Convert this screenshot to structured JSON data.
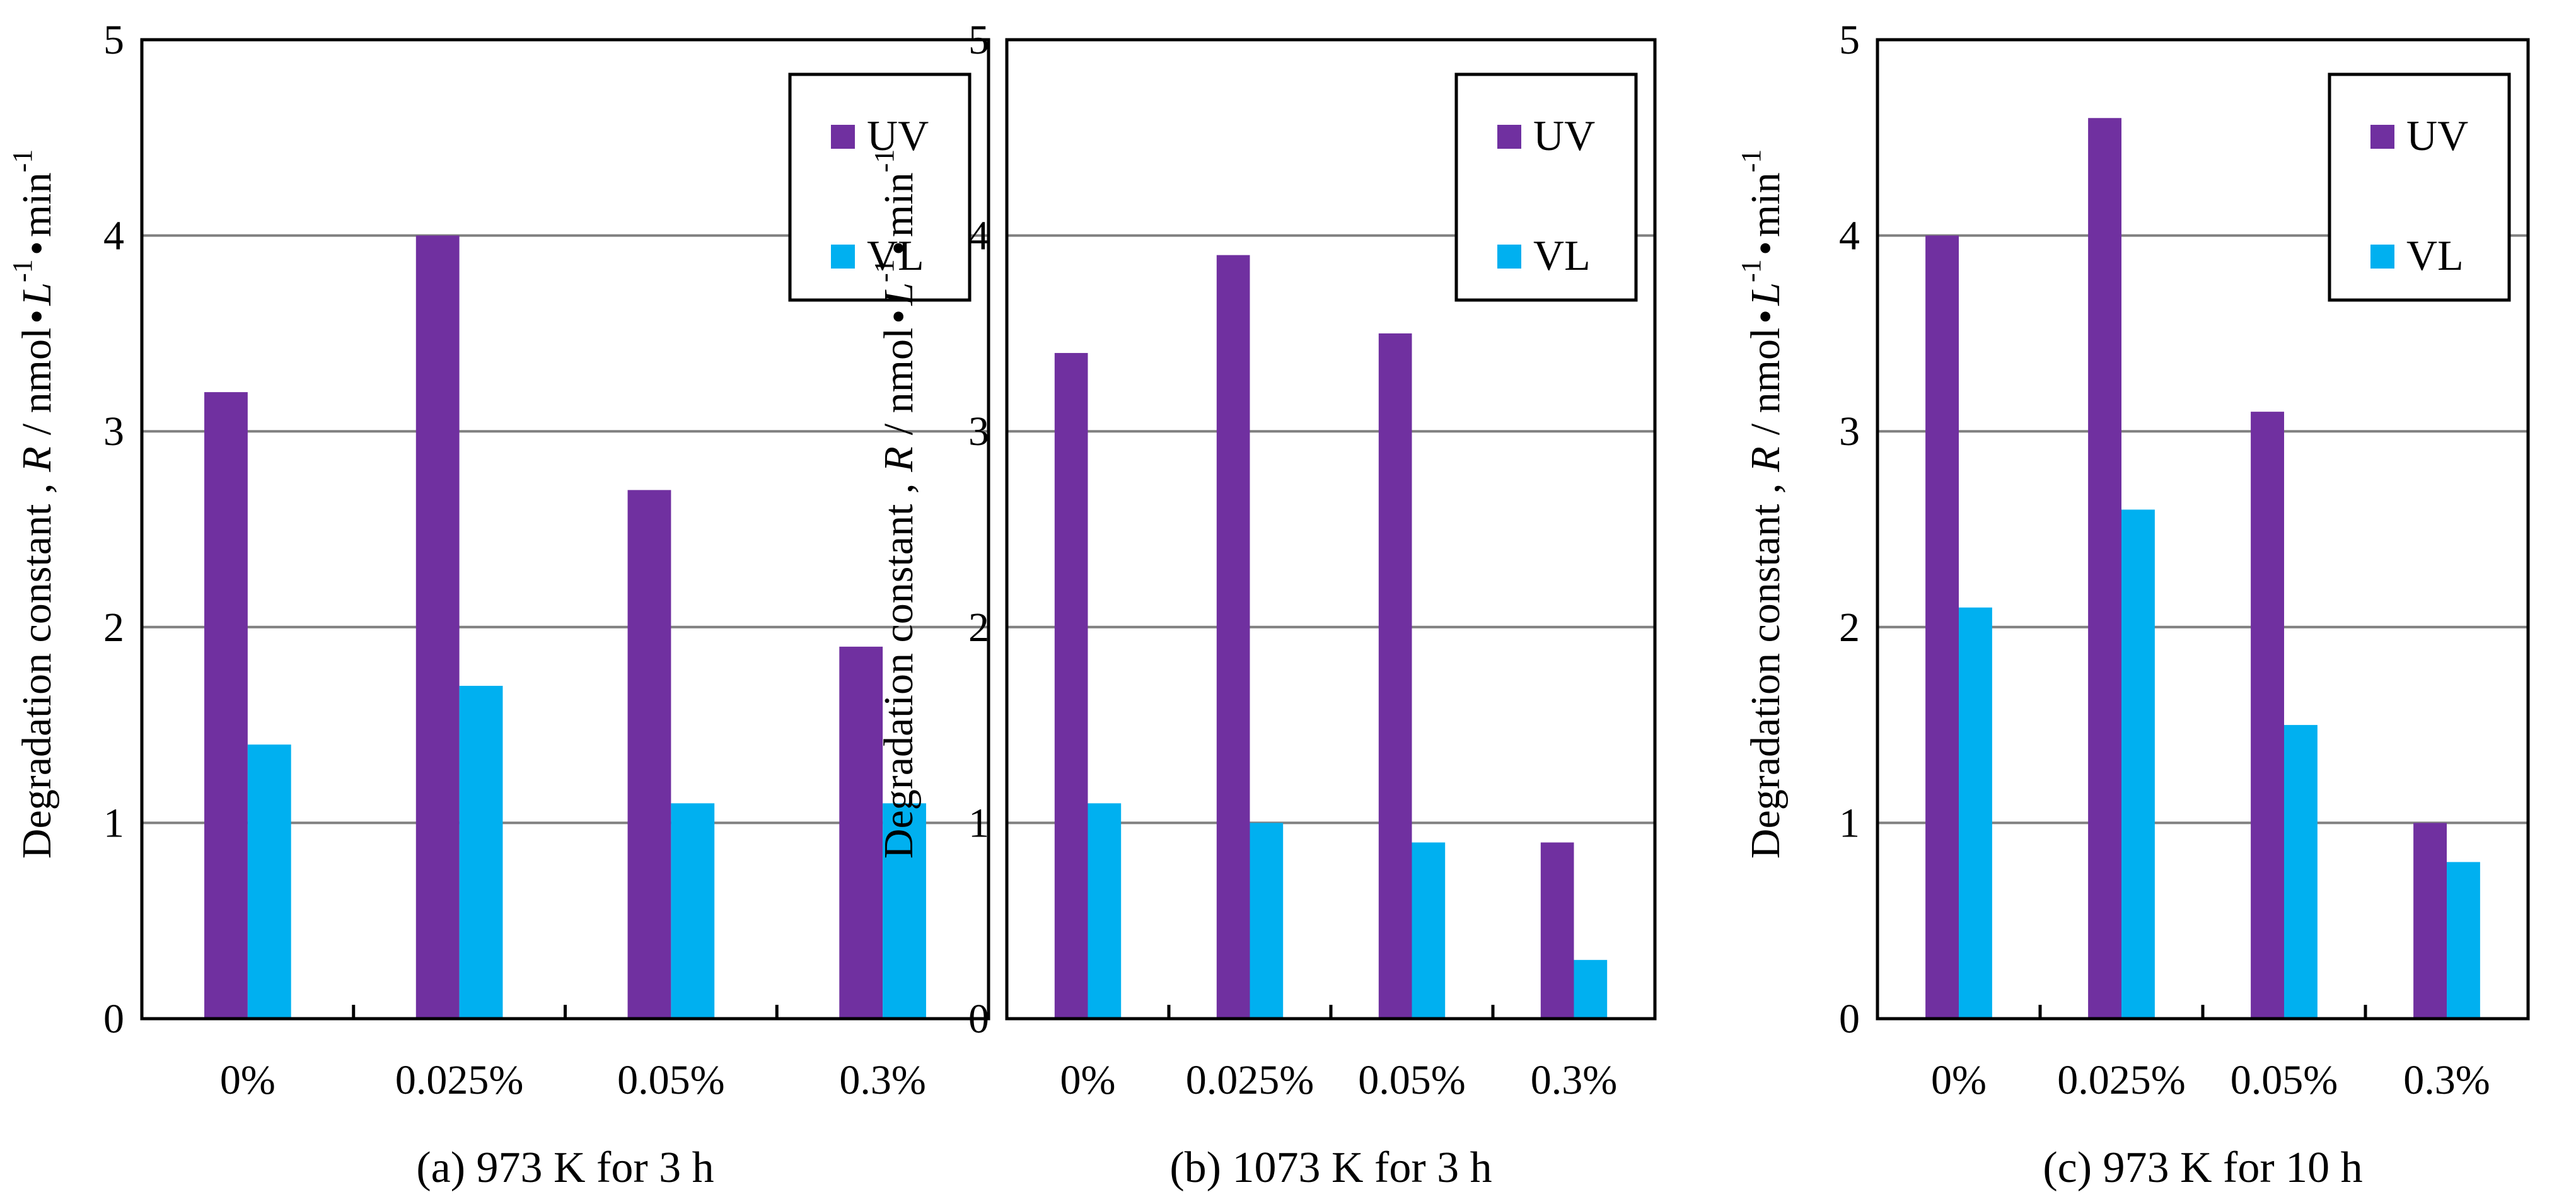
{
  "colors": {
    "uv": "#7030A0",
    "vl": "#00B0F0",
    "grid": "#808080",
    "axis": "#000000"
  },
  "ylabel": {
    "part1": "Degradation constant ,",
    "r": "R",
    "part2": "/ nmol",
    "dot": "•",
    "l": "L",
    "sup": "-1",
    "min": "min"
  },
  "chart_data": [
    {
      "type": "bar",
      "title": "(a) 973 K for 3 h",
      "categories": [
        "0%",
        "0.025%",
        "0.05%",
        "0.3%"
      ],
      "series": [
        {
          "name": "UV",
          "values": [
            3.2,
            4.0,
            2.7,
            1.9
          ]
        },
        {
          "name": "VL",
          "values": [
            1.4,
            1.7,
            1.1,
            1.1
          ]
        }
      ],
      "ylim": [
        0,
        5
      ],
      "yticks": [
        "0",
        "1",
        "2",
        "3",
        "4",
        "5"
      ],
      "grid": true,
      "legend": "top-right"
    },
    {
      "type": "bar",
      "title": "(b) 1073 K for 3 h",
      "categories": [
        "0%",
        "0.025%",
        "0.05%",
        "0.3%"
      ],
      "series": [
        {
          "name": "UV",
          "values": [
            3.4,
            3.9,
            3.5,
            0.9
          ]
        },
        {
          "name": "VL",
          "values": [
            1.1,
            1.0,
            0.9,
            0.3
          ]
        }
      ],
      "ylim": [
        0,
        5
      ],
      "yticks": [
        "0",
        "1",
        "2",
        "3",
        "4",
        "5"
      ],
      "grid": true,
      "legend": "top-right"
    },
    {
      "type": "bar",
      "title": "(c) 973 K for 10 h",
      "categories": [
        "0%",
        "0.025%",
        "0.05%",
        "0.3%"
      ],
      "series": [
        {
          "name": "UV",
          "values": [
            4.0,
            4.6,
            3.1,
            1.0
          ]
        },
        {
          "name": "VL",
          "values": [
            2.1,
            2.6,
            1.5,
            0.8
          ]
        }
      ],
      "ylim": [
        0,
        5
      ],
      "yticks": [
        "0",
        "1",
        "2",
        "3",
        "4",
        "5"
      ],
      "grid": true,
      "legend": "top-right"
    }
  ]
}
